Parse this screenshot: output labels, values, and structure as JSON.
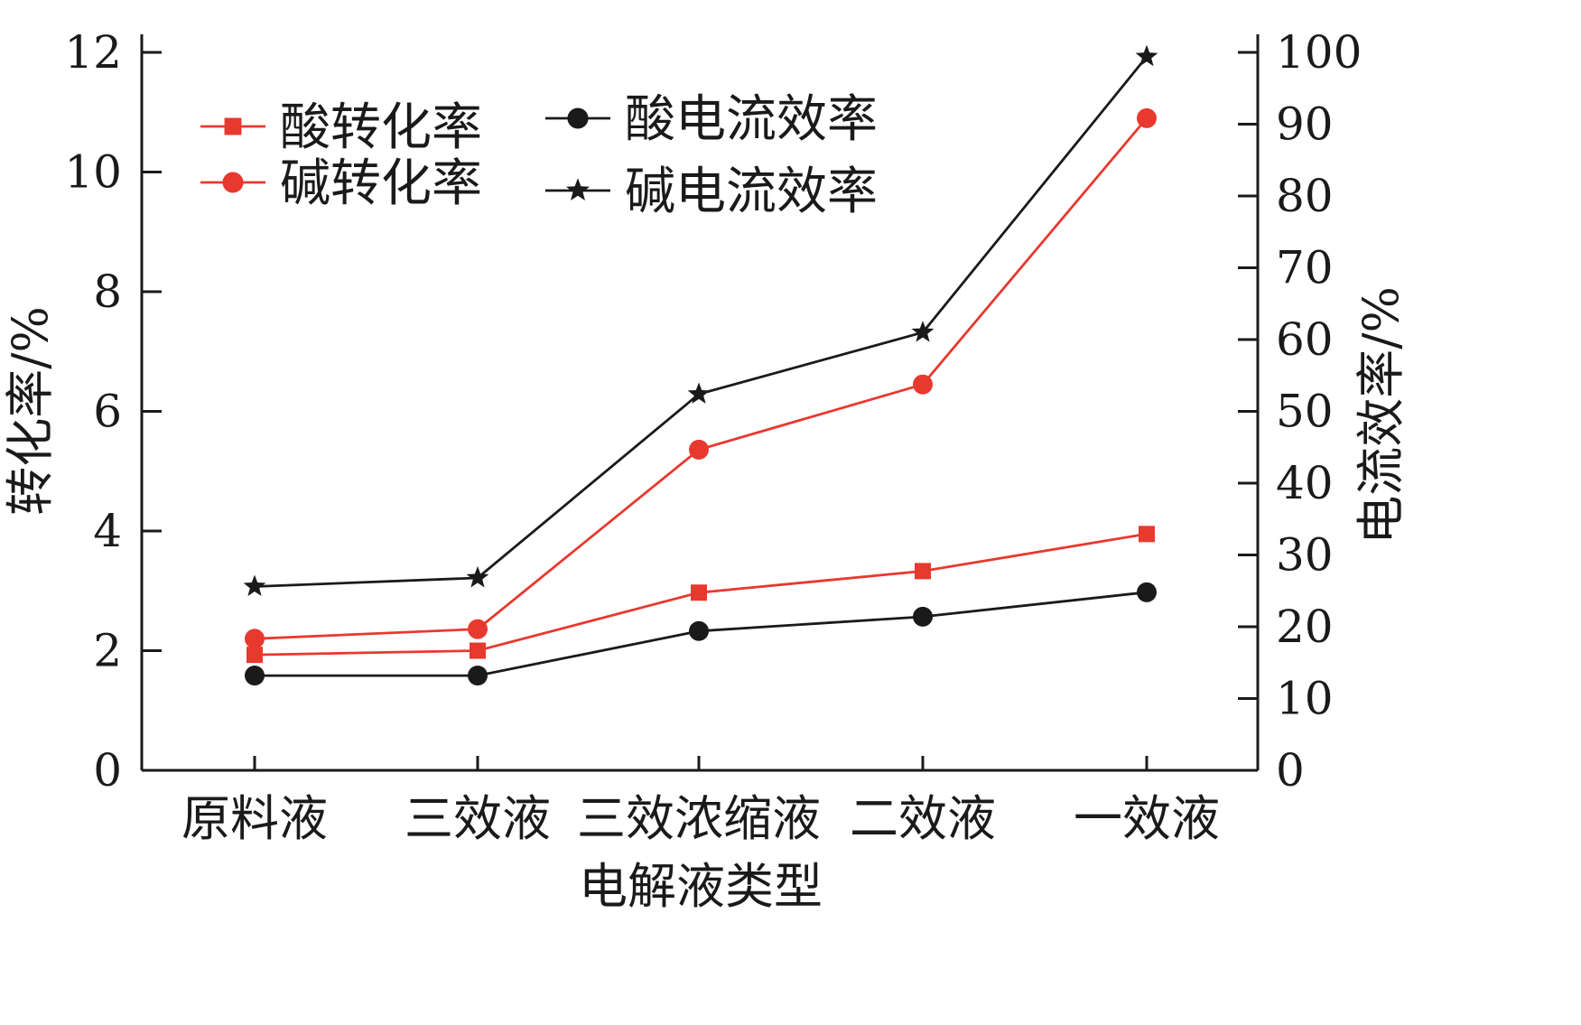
{
  "chart_data": {
    "type": "line",
    "xlabel": "电解液类型",
    "ylabel_left": "转化率/%",
    "ylabel_right": "电流效率/%",
    "categories": [
      "原料液",
      "三效液",
      "三效浓缩液",
      "二效液",
      "一效液"
    ],
    "ylim_left": [
      0,
      12
    ],
    "yticks_left": [
      0,
      2,
      4,
      6,
      8,
      10,
      12
    ],
    "ylim_right": [
      0,
      100
    ],
    "yticks_right": [
      0,
      10,
      20,
      30,
      40,
      50,
      60,
      70,
      80,
      90,
      100
    ],
    "grid": false,
    "legend_position": "top-left",
    "series": [
      {
        "name": "酸转化率",
        "axis": "left",
        "marker": "square",
        "color": "#e8392f",
        "values": [
          1.93,
          2.0,
          2.97,
          3.33,
          3.95
        ]
      },
      {
        "name": "碱转化率",
        "axis": "left",
        "marker": "circle",
        "color": "#e8392f",
        "values": [
          2.2,
          2.36,
          5.36,
          6.45,
          10.9
        ]
      },
      {
        "name": "酸电流效率",
        "axis": "right",
        "marker": "circle",
        "color": "#1a1a1a",
        "values": [
          13.2,
          13.2,
          19.4,
          21.4,
          24.8
        ]
      },
      {
        "name": "碱电流效率",
        "axis": "right",
        "marker": "star",
        "color": "#1a1a1a",
        "values": [
          25.6,
          26.8,
          52.4,
          61.0,
          99.4
        ]
      }
    ]
  }
}
